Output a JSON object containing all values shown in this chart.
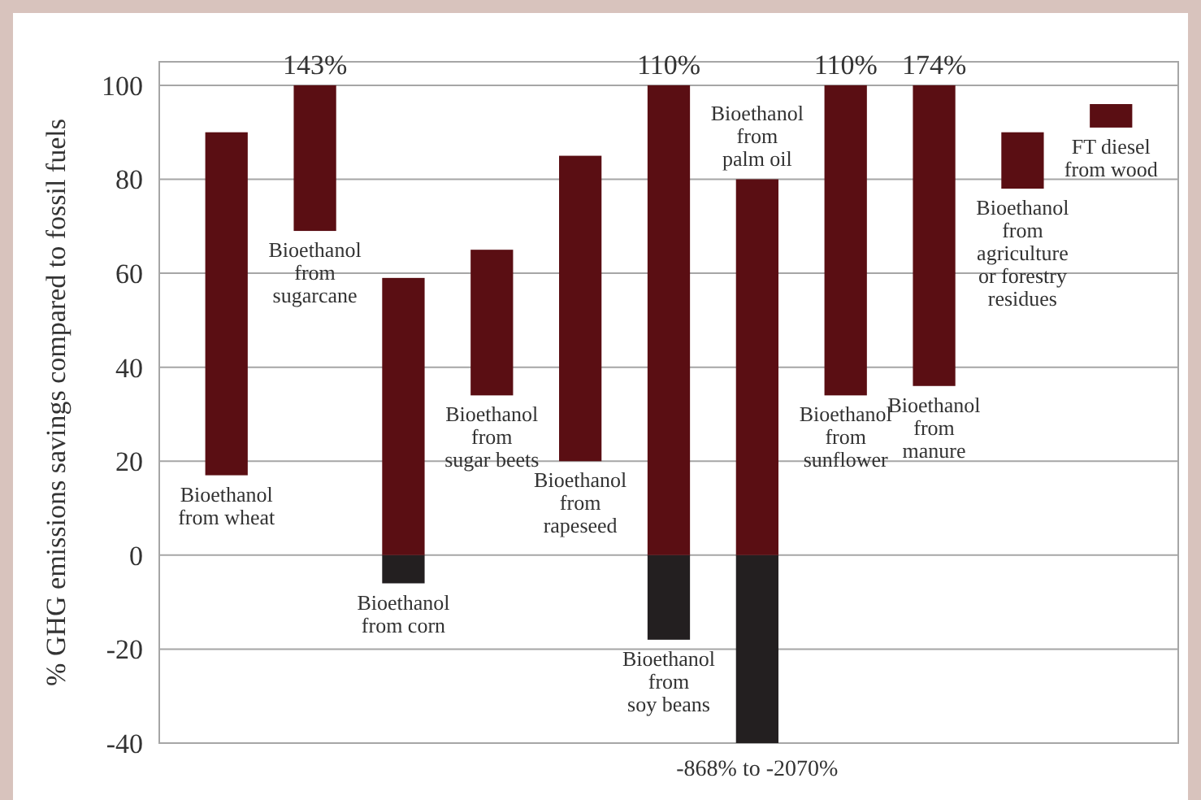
{
  "chart_data": {
    "type": "bar",
    "ylabel": "% GHG emissions savings compared to fossil fuels",
    "categories": [
      "Bioethanol\nfrom wheat",
      "Bioethanol\nfrom\nsugarcane",
      "Bioethanol\nfrom corn",
      "Bioethanol\nfrom\nsugar beets",
      "Bioethanol\nfrom\nrapeseed",
      "Bioethanol\nfrom\nsoy beans",
      "Bioethanol\nfrom\npalm oil",
      "Bioethanol\nfrom\nsunflower",
      "Bioethanol\nfrom\nmanure",
      "Bioethanol\nfrom\nagriculture\nor forestry\nresidues",
      "FT diesel\nfrom wood"
    ],
    "series": [
      {
        "color": "#231f20",
        "base": [
          null,
          null,
          -6,
          null,
          null,
          -18,
          -40,
          null,
          null,
          null,
          null
        ],
        "values": [
          null,
          null,
          6,
          null,
          null,
          18,
          40,
          null,
          null,
          null,
          null
        ]
      },
      {
        "color": "#5a0e13",
        "base": [
          17,
          69,
          0,
          34,
          20,
          0,
          0,
          34,
          36,
          78,
          91
        ],
        "values": [
          73,
          31,
          59,
          31,
          65,
          100,
          80,
          66,
          64,
          12,
          5
        ]
      }
    ],
    "ylim": [
      -40,
      105
    ],
    "yticks": [
      -40,
      -20,
      0,
      20,
      40,
      60,
      80,
      100
    ],
    "grid": "y",
    "annotations": [
      {
        "text": "143%",
        "x": "Bioethanol\nfrom\nsugarcane",
        "y": 100
      },
      {
        "text": "110%",
        "x": "Bioethanol\nfrom\nsoy beans",
        "y": 100
      },
      {
        "text": "110%",
        "x": "Bioethanol\nfrom\nsunflower",
        "y": 100
      },
      {
        "text": "174%",
        "x": "Bioethanol\nfrom\nmanure",
        "y": 100
      },
      {
        "text": "-868% to -2070%",
        "x": "Bioethanol\nfrom\npalm oil",
        "y": -40
      }
    ]
  }
}
